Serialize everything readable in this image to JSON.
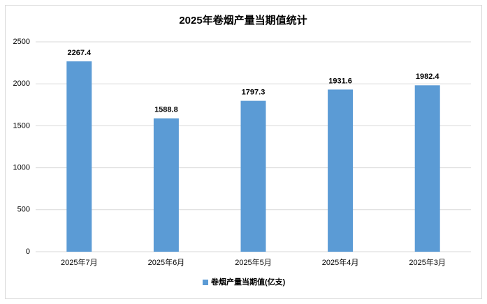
{
  "chart_data": {
    "type": "bar",
    "title": "2025年卷烟产量当期值统计",
    "categories": [
      "2025年7月",
      "2025年6月",
      "2025年5月",
      "2025年4月",
      "2025年3月"
    ],
    "series": [
      {
        "name": "卷烟产量当期值(亿支)",
        "color": "#5b9bd5",
        "values": [
          2267.4,
          1588.8,
          1797.3,
          1931.6,
          1982.4
        ]
      }
    ],
    "ylim": [
      0,
      2500
    ],
    "yticks": [
      0,
      500,
      1000,
      1500,
      2000,
      2500
    ],
    "grid": true,
    "legend": "bottom"
  }
}
